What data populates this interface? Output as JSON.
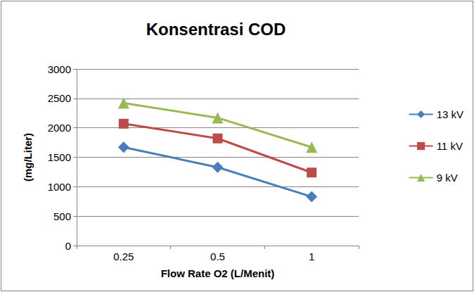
{
  "chart_data": {
    "type": "line",
    "title": "Konsentrasi COD",
    "x_label": "Flow Rate O2 (L/Menit)",
    "y_label": "(mg/Liter)",
    "categories": [
      "0.25",
      "0.5",
      "1"
    ],
    "series": [
      {
        "name": "13 kV",
        "color": "#4a7ebb",
        "marker": "diamond",
        "values": [
          1670,
          1330,
          830
        ]
      },
      {
        "name": "11 kV",
        "color": "#be4b48",
        "marker": "square",
        "values": [
          2070,
          1820,
          1240
        ]
      },
      {
        "name": "9 kV",
        "color": "#98b954",
        "marker": "triangle",
        "values": [
          2420,
          2170,
          1670
        ]
      }
    ],
    "ylim": [
      0,
      3000
    ],
    "yticks": [
      0,
      500,
      1000,
      1500,
      2000,
      2500,
      3000
    ],
    "grid": true,
    "legend": "right"
  }
}
